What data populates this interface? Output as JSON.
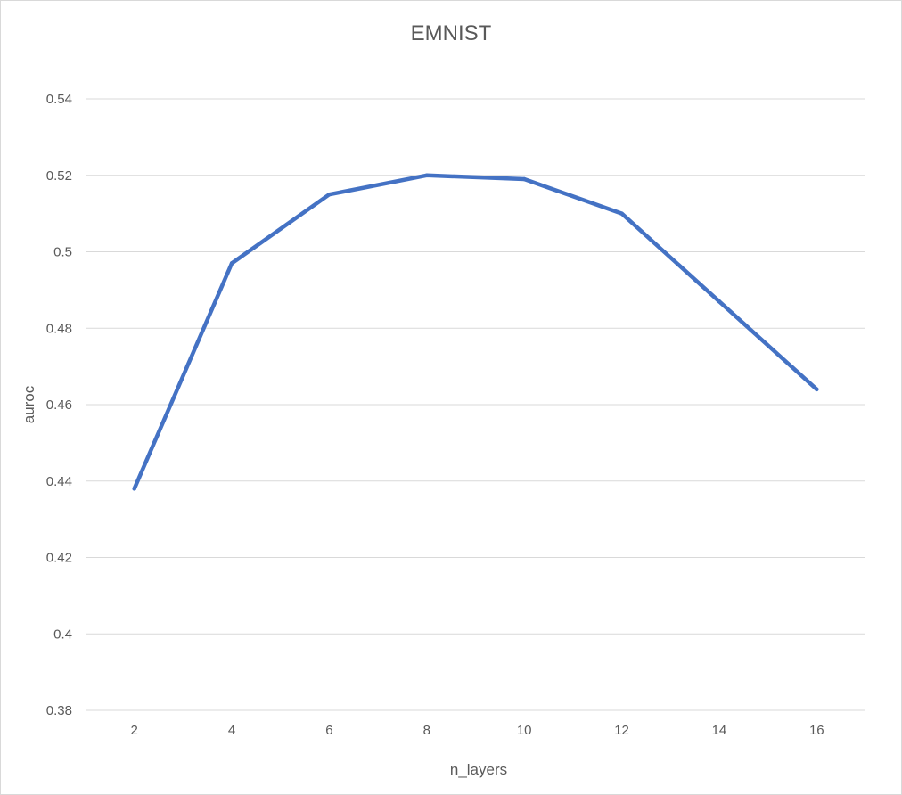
{
  "chart_data": {
    "type": "line",
    "title": "EMNIST",
    "xlabel": "n_layers",
    "ylabel": "auroc",
    "x": [
      2,
      4,
      6,
      8,
      10,
      12,
      14,
      16
    ],
    "x_ticks": [
      "2",
      "4",
      "6",
      "8",
      "10",
      "12",
      "14",
      "16"
    ],
    "y_ticks": [
      "0.38",
      "0.4",
      "0.42",
      "0.44",
      "0.46",
      "0.48",
      "0.5",
      "0.52",
      "0.54"
    ],
    "ylim": [
      0.38,
      0.54
    ],
    "series": [
      {
        "values": [
          0.438,
          0.497,
          0.515,
          0.52,
          0.519,
          0.51,
          0.487,
          0.464
        ],
        "color": "#4472c4"
      }
    ],
    "grid": true,
    "legend": "none"
  }
}
